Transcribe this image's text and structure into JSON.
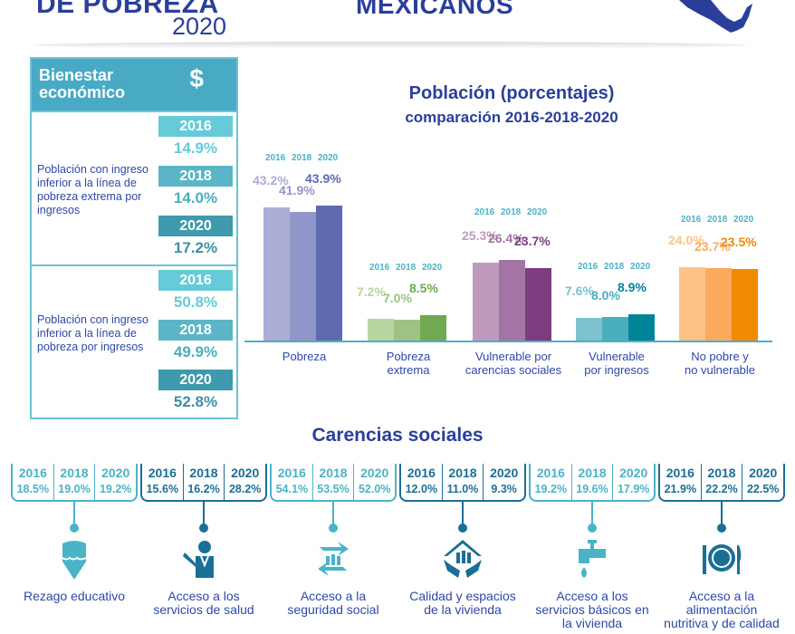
{
  "header": {
    "title_left": "DE POBREZA",
    "year": "2020",
    "title_center": "MEXICANOS",
    "map_icon": "mexico-map-icon",
    "accent": "#2a3f9a"
  },
  "bienestar": {
    "title": "Bienestar económico",
    "icon": "dollar-icon",
    "icon_text": "$",
    "rows": [
      {
        "label": "Población con ingreso inferior a la línea de pobreza extrema por ingresos",
        "values": [
          {
            "year": "2016",
            "value": "14.9%"
          },
          {
            "year": "2018",
            "value": "14.0%"
          },
          {
            "year": "2020",
            "value": "17.2%"
          }
        ]
      },
      {
        "label": "Población con ingreso inferior a la línea de pobreza por ingresos",
        "values": [
          {
            "year": "2016",
            "value": "50.8%"
          },
          {
            "year": "2018",
            "value": "49.9%"
          },
          {
            "year": "2020",
            "value": "52.8%"
          }
        ]
      }
    ]
  },
  "chart_data": {
    "type": "bar",
    "title": "Población (porcentajes)",
    "subtitle": "comparación 2016-2018-2020",
    "categories": [
      "Pobreza",
      "Pobreza extrema",
      "Vulnerable por carencias sociales",
      "Vulnerable por ingresos",
      "No pobre y no vulnerable"
    ],
    "years": [
      "2016",
      "2018",
      "2020"
    ],
    "values": [
      [
        43.2,
        41.9,
        43.9
      ],
      [
        7.2,
        7.0,
        8.5
      ],
      [
        25.3,
        26.4,
        23.7
      ],
      [
        7.6,
        8.0,
        8.9
      ],
      [
        24.0,
        23.7,
        23.5
      ]
    ],
    "labels": [
      [
        "43.2%",
        "41.9%",
        "43.9%"
      ],
      [
        "7.2%",
        "7.0%",
        "8.5%"
      ],
      [
        "25.3%",
        "26.4%",
        "23.7%"
      ],
      [
        "7.6%",
        "8.0%",
        "8.9%"
      ],
      [
        "24.0%",
        "23.7%",
        "23.5%"
      ]
    ],
    "colors": [
      [
        "#abadd6",
        "#9196c8",
        "#5f69b0"
      ],
      [
        "#b7d69f",
        "#9cc383",
        "#70a94f"
      ],
      [
        "#be9bbe",
        "#a275a4",
        "#7c3c80"
      ],
      [
        "#7cc2cc",
        "#4aaebc",
        "#00849a"
      ],
      [
        "#fdc386",
        "#fcaa5e",
        "#f08a00"
      ]
    ],
    "ylim": [
      0,
      45
    ]
  },
  "carencias": {
    "title": "Carencias sociales",
    "items": [
      {
        "label": "Rezago educativo",
        "icon": "pencil-icon",
        "color": "#4ab3c8",
        "years": [
          "2016",
          "2018",
          "2020"
        ],
        "values": [
          "18.5%",
          "19.0%",
          "19.2%"
        ]
      },
      {
        "label": "Acceso a los servicios de salud",
        "icon": "doctor-icon",
        "color": "#1a6f96",
        "years": [
          "2016",
          "2018",
          "2020"
        ],
        "values": [
          "15.6%",
          "16.2%",
          "28.2%"
        ]
      },
      {
        "label": "Acceso a la seguridad social",
        "icon": "social-security-icon",
        "color": "#4ab3c8",
        "years": [
          "2016",
          "2018",
          "2020"
        ],
        "values": [
          "54.1%",
          "53.5%",
          "52.0%"
        ]
      },
      {
        "label": "Calidad y espacios de la vivienda",
        "icon": "house-hands-icon",
        "color": "#1a6f96",
        "years": [
          "2016",
          "2018",
          "2020"
        ],
        "values": [
          "12.0%",
          "11.0%",
          "9.3%"
        ]
      },
      {
        "label": "Acceso a los servicios básicos en la vivienda",
        "icon": "faucet-icon",
        "color": "#4ab3c8",
        "years": [
          "2016",
          "2018",
          "2020"
        ],
        "values": [
          "19.2%",
          "19.6%",
          "17.9%"
        ]
      },
      {
        "label": "Acceso a la alimentación nutritiva y de calidad",
        "icon": "plate-icon",
        "color": "#1a6f96",
        "years": [
          "2016",
          "2018",
          "2020"
        ],
        "values": [
          "21.9%",
          "22.2%",
          "22.5%"
        ]
      }
    ]
  }
}
